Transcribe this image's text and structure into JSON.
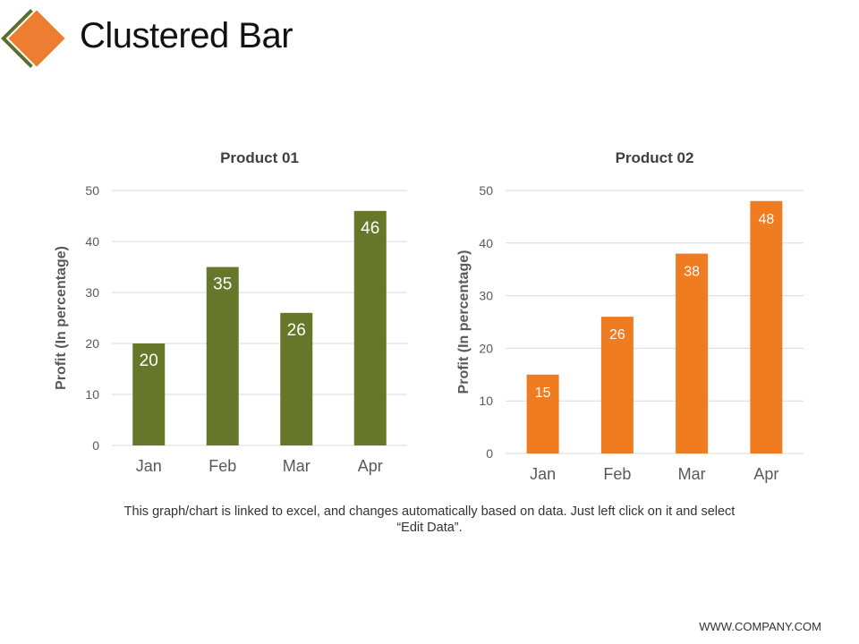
{
  "slide": {
    "title": "Clustered Bar",
    "footnote": "This graph/chart is linked to excel, and changes automatically based on data. Just left click on it and select “Edit Data”.",
    "footer": "WWW.COMPANY.COM"
  },
  "colors": {
    "logo_front": "#ed7d31",
    "logo_back": "#5c6e2c",
    "product1": "#66772a",
    "product2": "#f07c22",
    "gridline": "#d9d9d9",
    "text_dark": "#404040",
    "text_axis": "#595959"
  },
  "icons": {
    "logo": "orange-diamond-logo-icon"
  },
  "chart_data": [
    {
      "type": "bar",
      "title": "Product 01",
      "categories": [
        "Jan",
        "Feb",
        "Mar",
        "Apr"
      ],
      "values": [
        20,
        35,
        26,
        46
      ],
      "xlabel": "",
      "ylabel": "Profit  (In percentage)",
      "ylim": [
        0,
        50
      ],
      "yticks": [
        0,
        10,
        20,
        30,
        40,
        50
      ],
      "grid": true,
      "legend": "none",
      "color": "#66772a"
    },
    {
      "type": "bar",
      "title": "Product 02",
      "categories": [
        "Jan",
        "Feb",
        "Mar",
        "Apr"
      ],
      "values": [
        15,
        26,
        38,
        48
      ],
      "xlabel": "",
      "ylabel": "Profit  (In percentage)",
      "ylim": [
        0,
        50
      ],
      "yticks": [
        0,
        10,
        20,
        30,
        40,
        50
      ],
      "grid": true,
      "legend": "none",
      "color": "#f07c22"
    }
  ]
}
